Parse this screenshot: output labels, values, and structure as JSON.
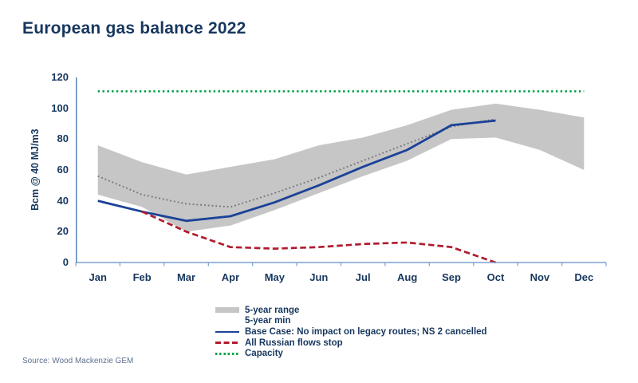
{
  "title": "European gas balance 2022",
  "y_axis_label": "Bcm @ 40 MJ/m3",
  "source": "Source: Wood Mackenzie GEM",
  "colors": {
    "navy_text": "#17375e",
    "gray_band": "#c6c6c6",
    "gray_dotted_line": "#757575",
    "blue_line": "#1b4298",
    "red_line": "#b01c2e",
    "green_line": "#00a14b",
    "x_axis": "#7ca0cf",
    "y_axis": "#4d79b5",
    "source_text": "#60708f"
  },
  "legend": {
    "items": [
      {
        "label": "5-year range",
        "swatch": "gray-fill"
      },
      {
        "label": "5-year min",
        "swatch": "none"
      },
      {
        "label": "Base Case: No impact on legacy routes; NS 2 cancelled",
        "swatch": "blue-solid-line"
      },
      {
        "label": "All Russian flows stop",
        "swatch": "red-dashed-line"
      },
      {
        "label": "Capacity",
        "swatch": "green-dotted-line"
      }
    ]
  },
  "chart_data": {
    "type": "line",
    "title": "European gas balance 2022",
    "xlabel": "",
    "ylabel": "Bcm @ 40 MJ/m3",
    "ylim": [
      0,
      120
    ],
    "y_ticks": [
      0,
      20,
      40,
      60,
      80,
      100,
      120
    ],
    "grid": false,
    "legend_position": "bottom",
    "categories": [
      "Jan",
      "Feb",
      "Mar",
      "Apr",
      "May",
      "Jun",
      "Jul",
      "Aug",
      "Sep",
      "Oct",
      "Nov",
      "Dec"
    ],
    "series": [
      {
        "name": "5-year range",
        "role": "range",
        "type": "band",
        "color": "#c6c6c6",
        "upper": [
          76,
          65,
          57,
          62,
          67,
          76,
          81,
          89,
          99,
          103,
          99,
          94
        ],
        "lower": [
          44,
          36,
          20,
          24,
          34,
          45,
          56,
          66,
          80,
          81,
          73,
          60
        ]
      },
      {
        "name": "5-year min",
        "role": "min",
        "type": "line",
        "visible": false,
        "values": [
          44,
          36,
          20,
          24,
          34,
          45,
          56,
          66,
          80,
          81,
          73,
          60
        ]
      },
      {
        "name": "",
        "role": "avg",
        "type": "line",
        "dash": "dotted",
        "color": "#757575",
        "start_index": 0,
        "values": [
          56,
          44,
          38,
          36,
          45,
          55,
          66,
          77,
          88,
          93
        ]
      },
      {
        "name": "Base Case: No impact on legacy routes; NS 2 cancelled",
        "role": "base",
        "type": "line",
        "dash": "solid",
        "color": "#1b4298",
        "start_index": 0,
        "values": [
          40,
          33,
          27,
          30,
          39,
          50,
          62,
          73,
          89,
          92
        ]
      },
      {
        "name": "All Russian flows stop",
        "role": "russian",
        "type": "line",
        "dash": "dashed",
        "color": "#b01c2e",
        "start_index": 1,
        "values": [
          33,
          20,
          10,
          9,
          10,
          12,
          13,
          10,
          0
        ]
      },
      {
        "name": "Capacity",
        "role": "capacity",
        "type": "line",
        "dash": "dotted",
        "color": "#00a14b",
        "start_index": 0,
        "values": [
          111,
          111,
          111,
          111,
          111,
          111,
          111,
          111,
          111,
          111,
          111,
          111
        ]
      }
    ]
  }
}
